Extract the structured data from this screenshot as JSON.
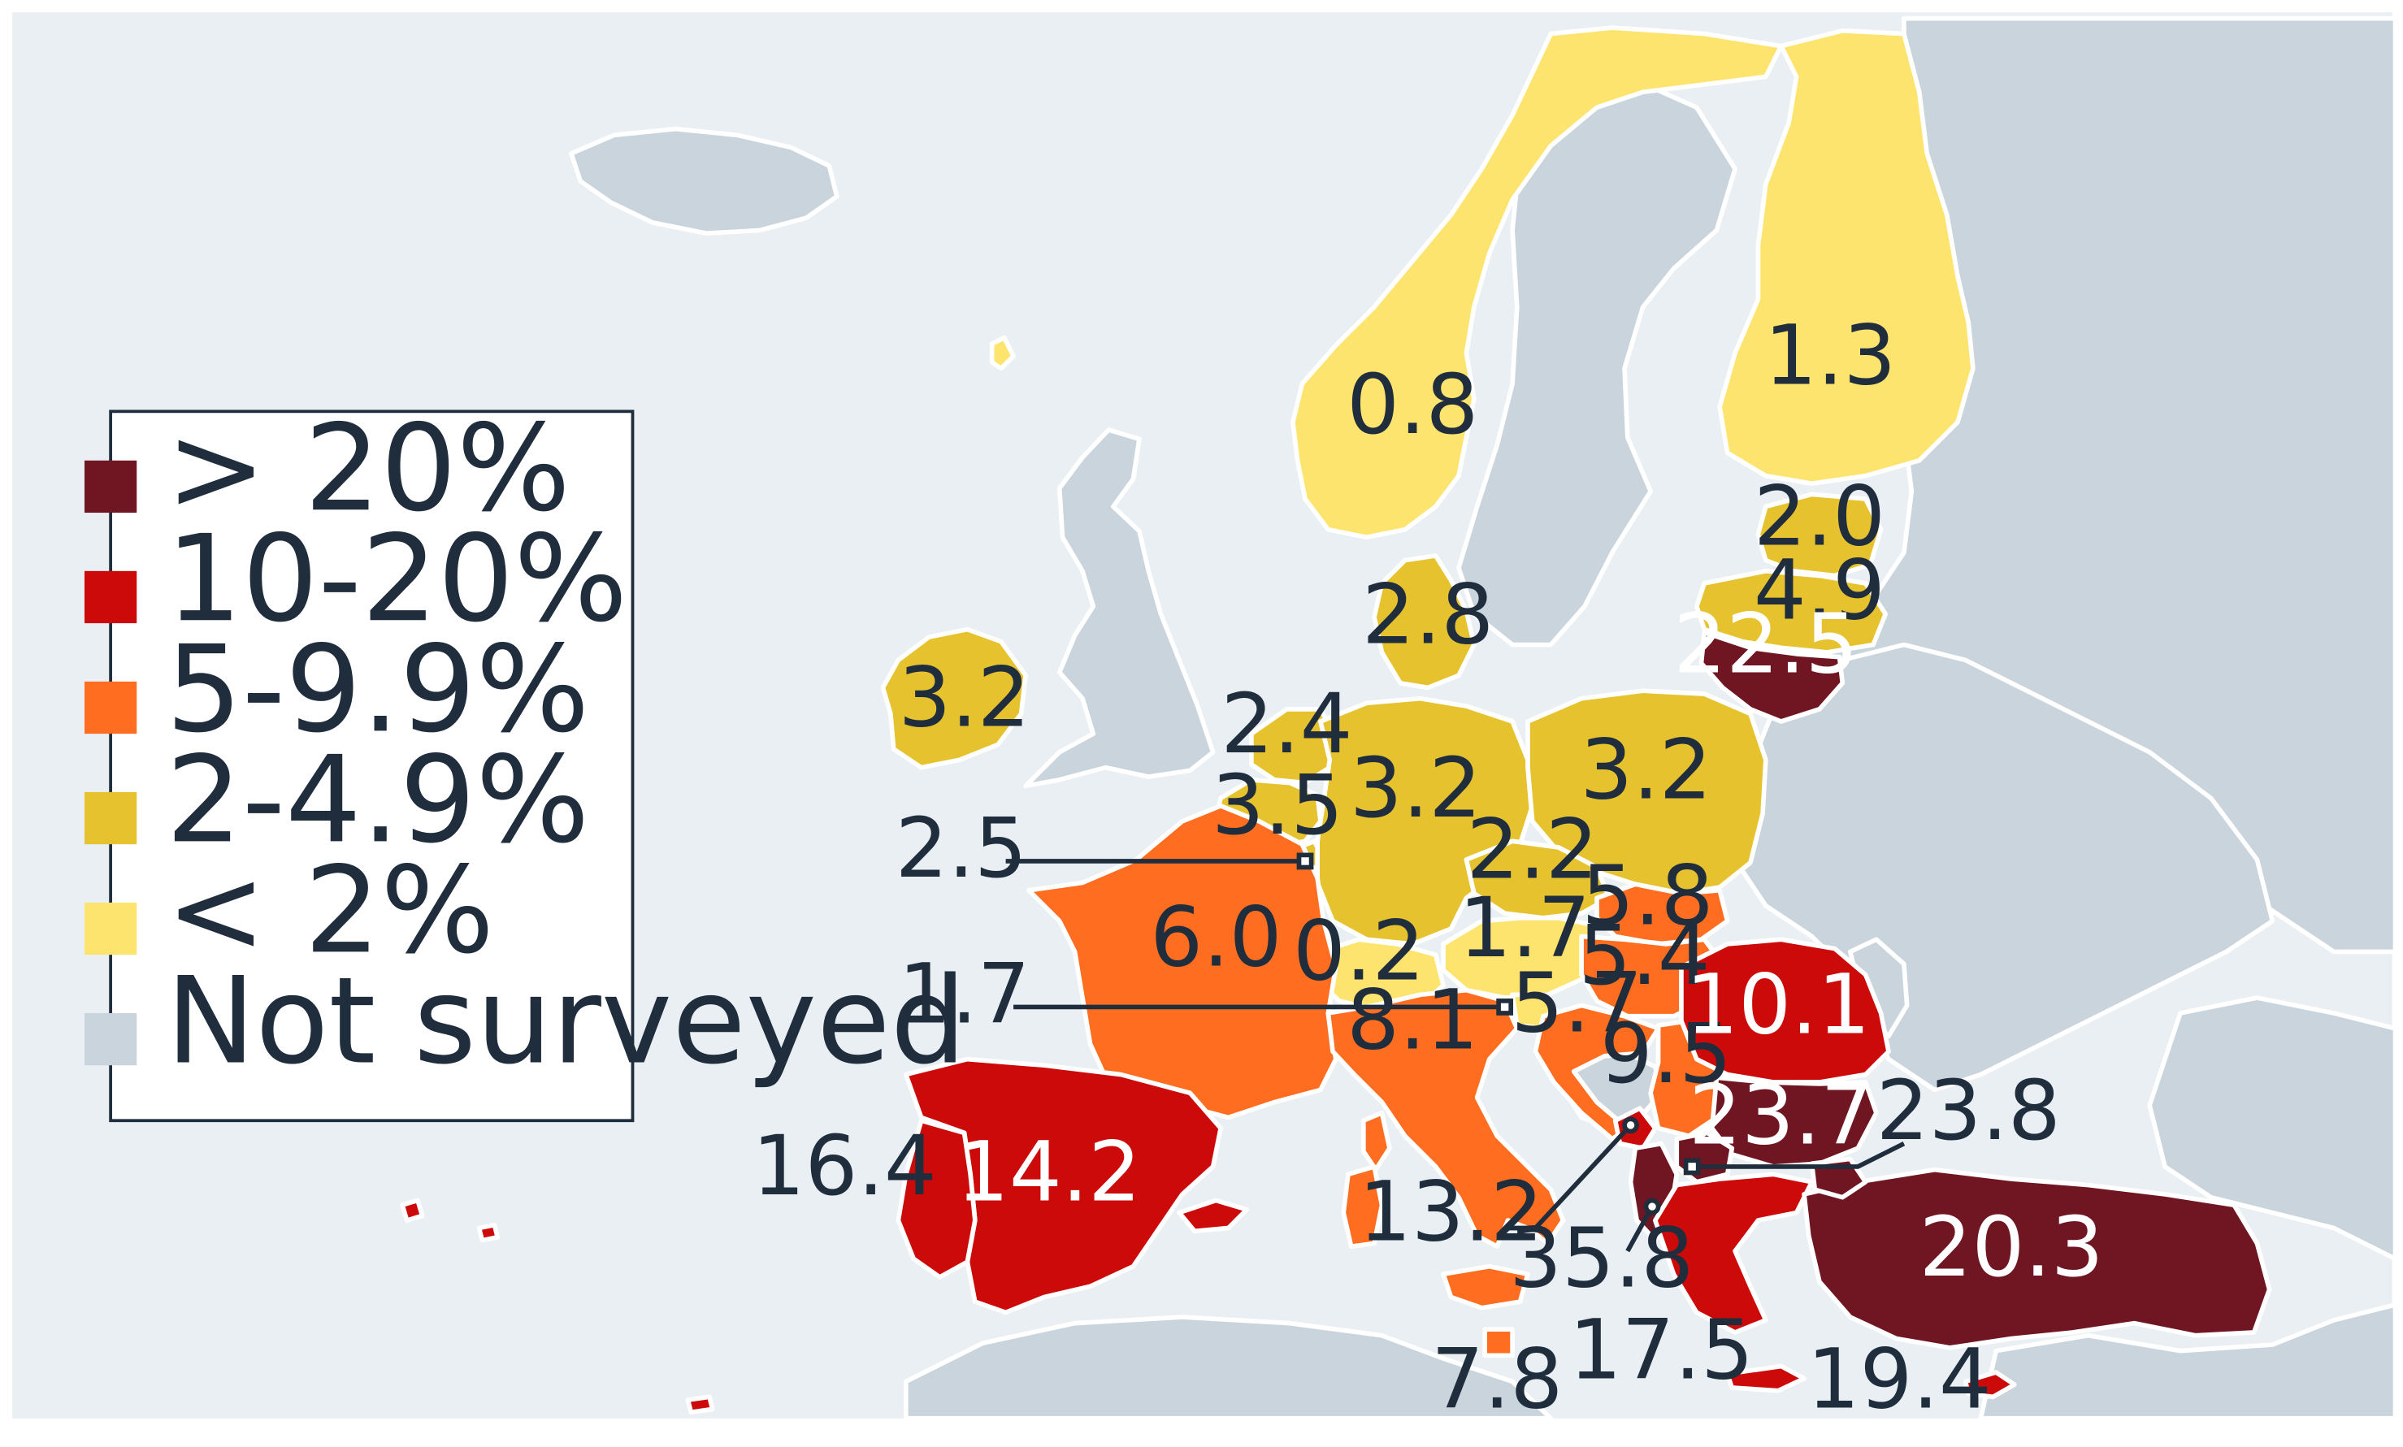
{
  "colors": {
    "sea": "#e9eff3",
    "not_surveyed": "#c9d4dc",
    "gt20": "#6f1622",
    "10to20": "#cc0a0a",
    "5to9_9": "#ff6e20",
    "2to4_9": "#e6c22e",
    "lt2": "#fde46e",
    "label_dark": "#1f2d3d",
    "label_light": "#ffffff"
  },
  "legend": {
    "items": [
      {
        "label": "> 20%",
        "color": "#6f1622"
      },
      {
        "label": "10-20%",
        "color": "#cc0a0a"
      },
      {
        "label": "5-9.9%",
        "color": "#ff6e20"
      },
      {
        "label": "2-4.9%",
        "color": "#e6c22e"
      },
      {
        "label": "< 2%",
        "color": "#fde46e"
      },
      {
        "label": "Not surveyed",
        "color": "#c9d4dc"
      }
    ]
  },
  "countries": {
    "norway": {
      "value": "0.8",
      "category": "lt2"
    },
    "finland": {
      "value": "1.3",
      "category": "lt2"
    },
    "estonia": {
      "value": "2.0",
      "category": "2to4_9"
    },
    "latvia": {
      "value": "4.9",
      "category": "2to4_9"
    },
    "lithuania": {
      "value": "22.5",
      "category": "gt20"
    },
    "denmark": {
      "value": "2.8",
      "category": "2to4_9"
    },
    "ireland": {
      "value": "3.2",
      "category": "2to4_9"
    },
    "netherlands": {
      "value": "2.4",
      "category": "2to4_9"
    },
    "belgium": {
      "value": "3.5",
      "category": "2to4_9"
    },
    "luxembourg": {
      "value": "2.5",
      "category": "2to4_9"
    },
    "germany": {
      "value": "3.2",
      "category": "2to4_9"
    },
    "poland": {
      "value": "3.2",
      "category": "2to4_9"
    },
    "czechia": {
      "value": "2.2",
      "category": "2to4_9"
    },
    "slovakia": {
      "value": "5.8",
      "category": "5to9_9"
    },
    "austria": {
      "value": "1.7",
      "category": "lt2"
    },
    "hungary": {
      "value": "5.4",
      "category": "5to9_9"
    },
    "switzerland": {
      "value": "0.2",
      "category": "lt2"
    },
    "slovenia": {
      "value": "1.7",
      "category": "lt2"
    },
    "croatia": {
      "value": "5.7",
      "category": "5to9_9"
    },
    "serbia": {
      "value": "9.5",
      "category": "5to9_9"
    },
    "romania": {
      "value": "10.1",
      "category": "10to20"
    },
    "bulgaria": {
      "value": "23.7",
      "category": "gt20"
    },
    "north_macedonia": {
      "value": "23.8",
      "category": "gt20"
    },
    "montenegro": {
      "value": "13.2",
      "category": "10to20"
    },
    "albania": {
      "value": "35.8",
      "category": "gt20"
    },
    "greece": {
      "value": "17.5",
      "category": "10to20"
    },
    "turkey": {
      "value": "20.3",
      "category": "gt20"
    },
    "cyprus": {
      "value": "19.4",
      "category": "10to20"
    },
    "france": {
      "value": "6.0",
      "category": "5to9_9"
    },
    "italy": {
      "value": "8.1",
      "category": "5to9_9"
    },
    "malta": {
      "value": "7.8",
      "category": "5to9_9"
    },
    "spain": {
      "value": "14.2",
      "category": "10to20"
    },
    "portugal": {
      "value": "16.4",
      "category": "10to20"
    }
  }
}
